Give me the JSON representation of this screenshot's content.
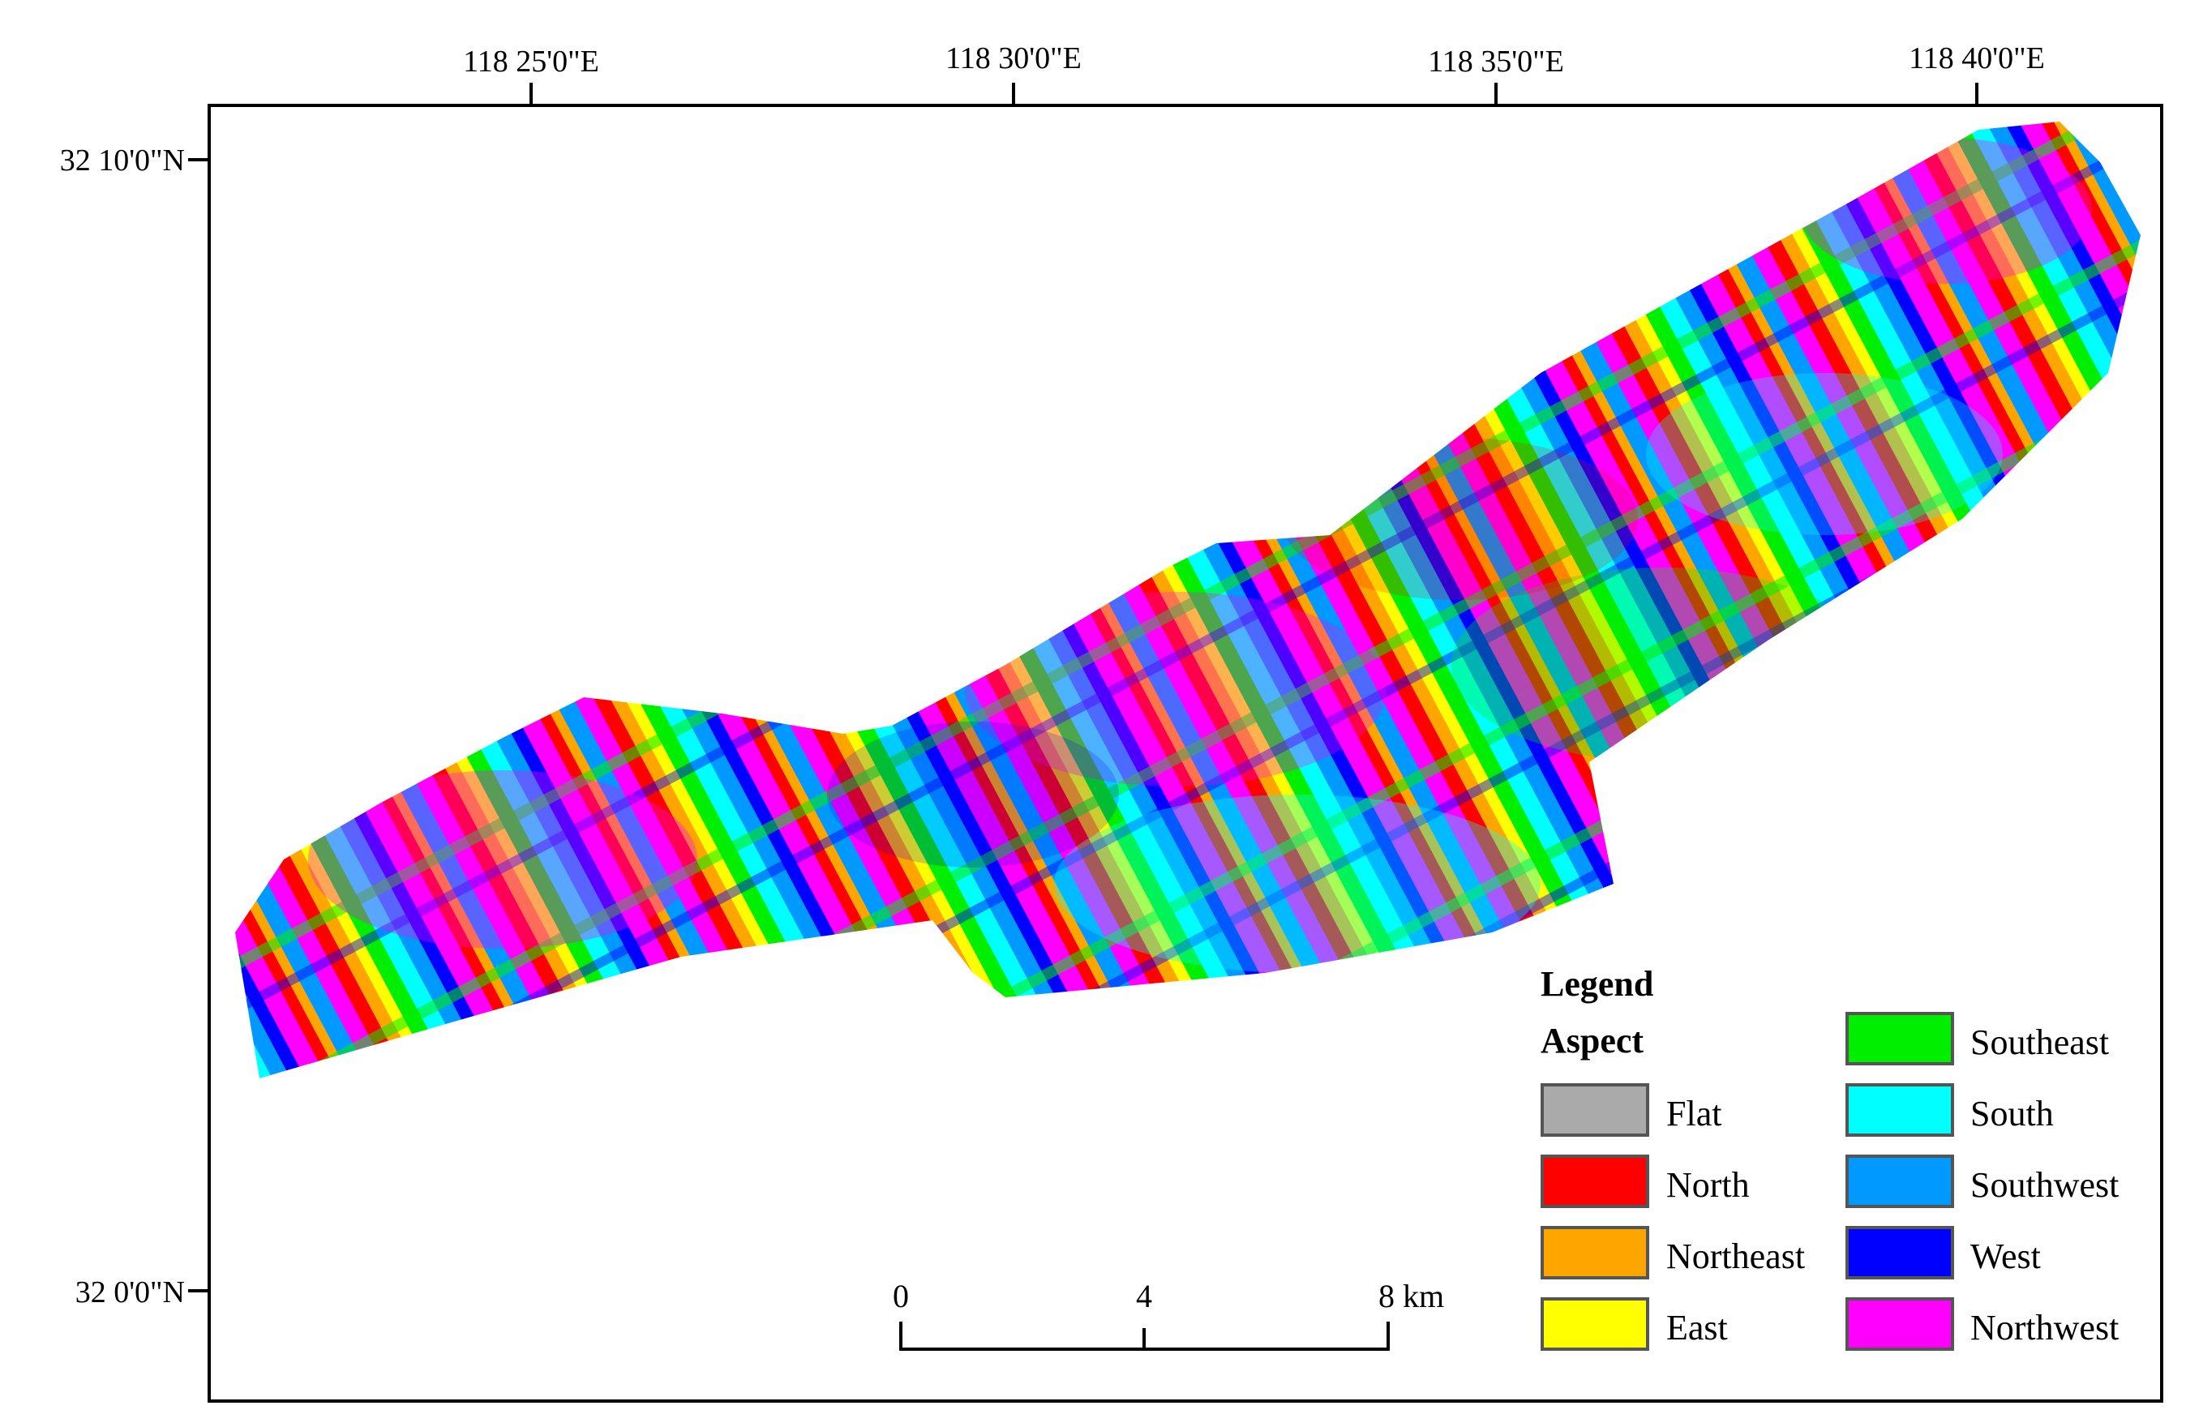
{
  "map": {
    "longitude_labels": [
      "118  25'0\"E",
      "118  30'0\"E",
      "118  35'0\"E",
      "118  40'0\"E"
    ],
    "latitude_labels": [
      "32  10'0\"N",
      "32  0'0\"N"
    ]
  },
  "legend": {
    "title": "Legend",
    "subtitle": "Aspect",
    "items": [
      {
        "label": "Flat",
        "color": "#aaaaaa"
      },
      {
        "label": "North",
        "color": "#ff0000"
      },
      {
        "label": "Northeast",
        "color": "#ffa500"
      },
      {
        "label": "East",
        "color": "#ffff00"
      },
      {
        "label": "Southeast",
        "color": "#00ee00"
      },
      {
        "label": "South",
        "color": "#00ffff"
      },
      {
        "label": "Southwest",
        "color": "#0099ff"
      },
      {
        "label": "West",
        "color": "#0000ff"
      },
      {
        "label": "Northwest",
        "color": "#ff00ff"
      }
    ]
  },
  "scale_bar": {
    "ticks": [
      "0",
      "4",
      "8 km"
    ]
  }
}
